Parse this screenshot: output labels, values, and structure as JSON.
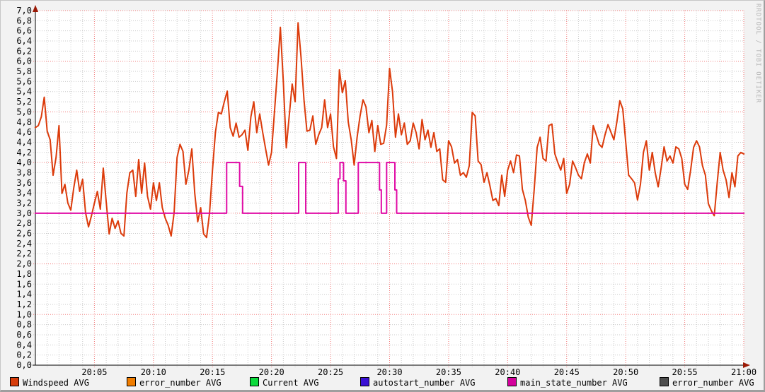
{
  "watermark": "RRDTOOL / TOBI OETIKER",
  "colors": {
    "page_bg": "#f2f2f2",
    "plot_bg": "#ffffff",
    "grid_minor": "#cbcbcb",
    "grid_major": "#f37b7b",
    "axis": "#000000",
    "arrow": "#9b1a06",
    "text": "#000000",
    "watermark": "#b5b5b5"
  },
  "legend": {
    "items": [
      {
        "label": "Windspeed AVG",
        "color": "#d73c0a"
      },
      {
        "label": "error_number AVG",
        "color": "#f07d00"
      },
      {
        "label": "Current AVG",
        "color": "#0bdb3c"
      },
      {
        "label": "autostart_number AVG",
        "color": "#3a10d4"
      },
      {
        "label": "main_state_number AVG",
        "color": "#d4009c"
      },
      {
        "label": "error_number AVG",
        "color": "#4d4d4d"
      }
    ]
  },
  "chart_data": {
    "type": "line",
    "title": "",
    "x_axis": {
      "start_time": "20:00",
      "end_time": "21:00",
      "minor_tick_minutes": 1,
      "major_tick_minutes": 5,
      "tick_labels": [
        "20:05",
        "20:10",
        "20:15",
        "20:20",
        "20:25",
        "20:30",
        "20:35",
        "20:40",
        "20:45",
        "20:50",
        "20:55",
        "21:00"
      ]
    },
    "y_axis": {
      "min": 0.0,
      "max": 7.0,
      "minor_step": 0.2,
      "major_step": 1.0,
      "tick_labels": [
        "0,0",
        "0,2",
        "0,4",
        "0,6",
        "0,8",
        "1,0",
        "1,2",
        "1,4",
        "1,6",
        "1,8",
        "2,0",
        "2,2",
        "2,4",
        "2,6",
        "2,8",
        "3,0",
        "3,2",
        "3,4",
        "3,6",
        "3,8",
        "4,0",
        "4,2",
        "4,4",
        "4,6",
        "4,8",
        "5,0",
        "5,2",
        "5,4",
        "5,6",
        "5,8",
        "6,0",
        "6,2",
        "6,4",
        "6,6",
        "6,8",
        "7,0"
      ]
    },
    "grid": {
      "on": true,
      "legend_position": "bottom"
    },
    "series": [
      {
        "name": "Windspeed AVG",
        "color": "#dc3b0b",
        "type": "line",
        "start_minute": 0,
        "sample_minutes": 0.25,
        "values": [
          4.69,
          4.73,
          4.9,
          5.29,
          4.62,
          4.45,
          3.75,
          4.1,
          4.73,
          3.39,
          3.57,
          3.2,
          3.06,
          3.5,
          3.85,
          3.43,
          3.67,
          3.01,
          2.73,
          2.95,
          3.2,
          3.43,
          3.08,
          3.89,
          3.22,
          2.59,
          2.9,
          2.7,
          2.85,
          2.6,
          2.55,
          3.4,
          3.8,
          3.85,
          3.33,
          4.06,
          3.39,
          3.99,
          3.33,
          3.08,
          3.6,
          3.25,
          3.6,
          3.11,
          2.9,
          2.76,
          2.55,
          3.01,
          4.1,
          4.36,
          4.22,
          3.57,
          3.85,
          4.27,
          3.39,
          2.83,
          3.11,
          2.59,
          2.52,
          3.0,
          3.85,
          4.6,
          4.99,
          4.96,
          5.2,
          5.41,
          4.69,
          4.52,
          4.78,
          4.5,
          4.55,
          4.64,
          4.24,
          4.9,
          5.2,
          4.59,
          4.96,
          4.6,
          4.27,
          3.95,
          4.2,
          5.0,
          5.8,
          6.67,
          5.6,
          4.29,
          4.92,
          5.55,
          5.2,
          6.76,
          6.08,
          5.24,
          4.62,
          4.64,
          4.92,
          4.36,
          4.55,
          4.69,
          5.24,
          4.69,
          4.96,
          4.31,
          4.08,
          5.83,
          5.38,
          5.62,
          4.8,
          4.45,
          3.95,
          4.5,
          4.92,
          5.24,
          5.1,
          4.59,
          4.83,
          4.22,
          4.73,
          4.36,
          4.38,
          4.74,
          5.86,
          5.4,
          4.5,
          4.96,
          4.55,
          4.78,
          4.36,
          4.43,
          4.78,
          4.59,
          4.27,
          4.85,
          4.45,
          4.64,
          4.3,
          4.59,
          4.22,
          4.27,
          3.66,
          3.61,
          4.43,
          4.31,
          3.99,
          4.06,
          3.75,
          3.8,
          3.71,
          3.94,
          4.99,
          4.92,
          4.03,
          3.96,
          3.61,
          3.8,
          3.54,
          3.25,
          3.29,
          3.15,
          3.75,
          3.33,
          3.85,
          4.03,
          3.8,
          4.15,
          4.13,
          3.47,
          3.25,
          2.92,
          2.76,
          3.47,
          4.3,
          4.5,
          4.08,
          4.03,
          4.73,
          4.76,
          4.17,
          4.0,
          3.85,
          4.08,
          3.39,
          3.57,
          4.03,
          3.9,
          3.75,
          3.68,
          4.0,
          4.17,
          3.99,
          4.73,
          4.55,
          4.36,
          4.3,
          4.55,
          4.75,
          4.6,
          4.45,
          4.8,
          5.22,
          5.06,
          4.41,
          3.75,
          3.68,
          3.6,
          3.26,
          3.57,
          4.2,
          4.43,
          3.85,
          4.2,
          3.8,
          3.52,
          3.89,
          4.31,
          4.03,
          4.13,
          3.99,
          4.31,
          4.27,
          4.08,
          3.57,
          3.47,
          3.85,
          4.3,
          4.43,
          4.31,
          3.94,
          3.75,
          3.19,
          3.05,
          2.95,
          3.6,
          4.2,
          3.85,
          3.66,
          3.31,
          3.8,
          3.52,
          4.13,
          4.2,
          4.17
        ]
      },
      {
        "name": "main_state_number AVG",
        "color": "#e00ba5",
        "type": "step",
        "points": [
          [
            0,
            3
          ],
          [
            16.2,
            3
          ],
          [
            16.2,
            4
          ],
          [
            17.3,
            4
          ],
          [
            17.3,
            3.53
          ],
          [
            17.55,
            3.53
          ],
          [
            17.55,
            3
          ],
          [
            22.3,
            3
          ],
          [
            22.3,
            4
          ],
          [
            22.9,
            4
          ],
          [
            22.9,
            3
          ],
          [
            25.65,
            3
          ],
          [
            25.65,
            3.68
          ],
          [
            25.8,
            3.68
          ],
          [
            25.8,
            4
          ],
          [
            26.1,
            4
          ],
          [
            26.1,
            3.64
          ],
          [
            26.3,
            3.64
          ],
          [
            26.3,
            3
          ],
          [
            27.35,
            3
          ],
          [
            27.35,
            4
          ],
          [
            29.15,
            4
          ],
          [
            29.15,
            3.46
          ],
          [
            29.3,
            3.46
          ],
          [
            29.3,
            3
          ],
          [
            29.75,
            3
          ],
          [
            29.75,
            4
          ],
          [
            30.45,
            4
          ],
          [
            30.45,
            3.46
          ],
          [
            30.6,
            3.46
          ],
          [
            30.6,
            3
          ],
          [
            60,
            3
          ]
        ]
      }
    ]
  }
}
